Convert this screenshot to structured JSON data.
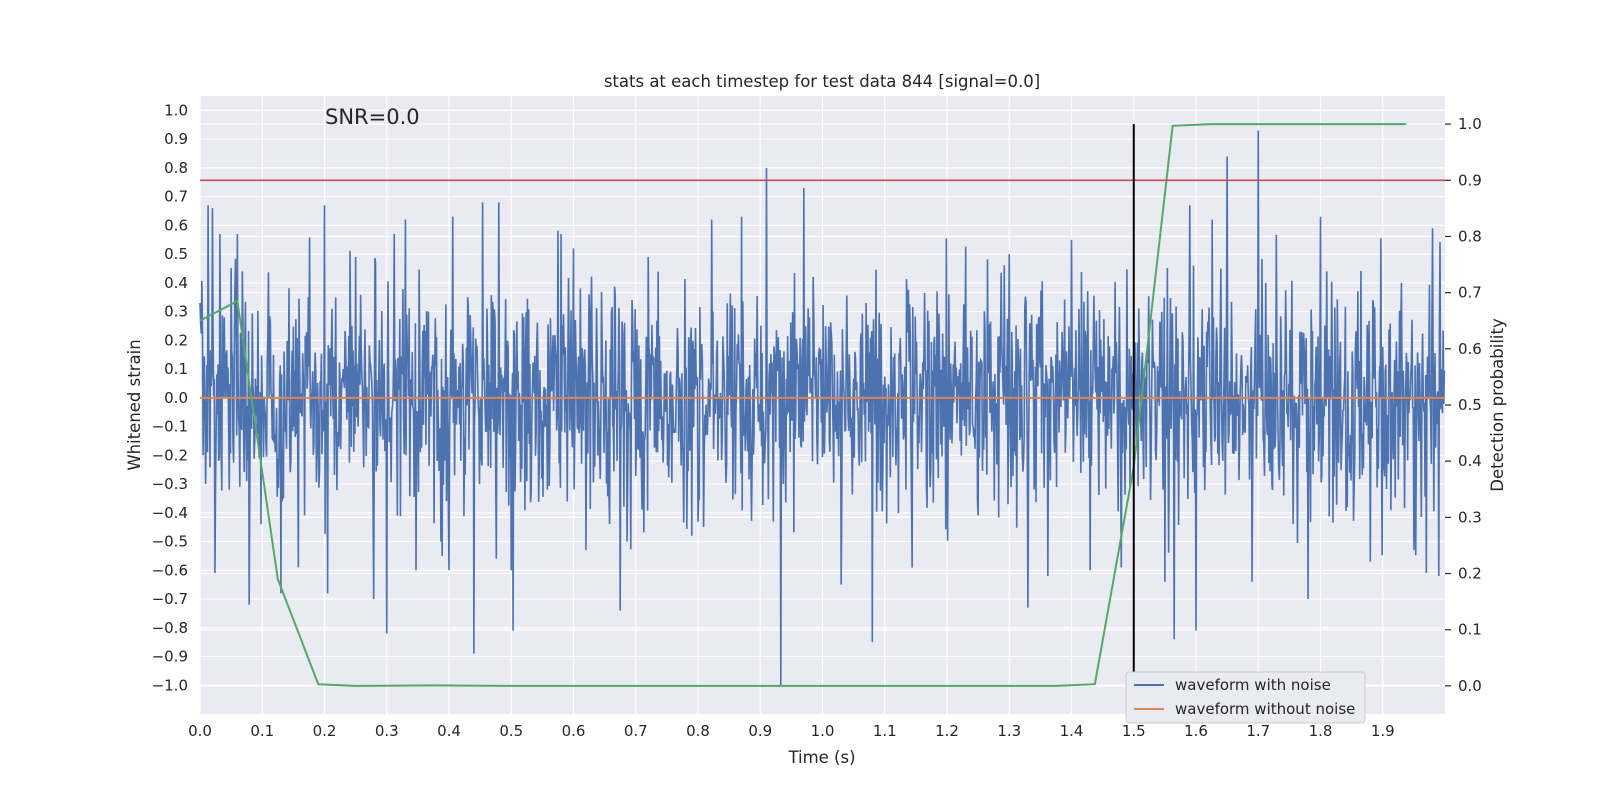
{
  "chart_data": {
    "type": "line",
    "title": "stats at each timestep for test data 844 [signal=0.0]",
    "xlabel": "Time (s)",
    "ylabel_left": "Whitened strain",
    "ylabel_right": "Detection probability",
    "xlim": [
      0.0,
      2.0
    ],
    "ylim_left": [
      -1.1,
      1.05
    ],
    "ylim_right": [
      -0.05,
      1.05
    ],
    "xticks": [
      "0.0",
      "0.1",
      "0.2",
      "0.3",
      "0.4",
      "0.5",
      "0.6",
      "0.7",
      "0.8",
      "0.9",
      "1.0",
      "1.1",
      "1.2",
      "1.3",
      "1.4",
      "1.5",
      "1.6",
      "1.7",
      "1.8",
      "1.9"
    ],
    "yticks_left": [
      "1.0",
      "0.9",
      "0.8",
      "0.7",
      "0.6",
      "0.5",
      "0.4",
      "0.3",
      "0.2",
      "0.1",
      "0.0",
      "−0.1",
      "−0.2",
      "−0.3",
      "−0.4",
      "−0.5",
      "−0.6",
      "−0.7",
      "−0.8",
      "−0.9",
      "−1.0"
    ],
    "yticks_right": [
      "1.0",
      "0.9",
      "0.8",
      "0.7",
      "0.6",
      "0.5",
      "0.4",
      "0.3",
      "0.2",
      "0.1",
      "0.0"
    ],
    "grid": true,
    "legend_position": "lower-right",
    "annotation": "SNR=0.0",
    "series": [
      {
        "name": "waveform with noise",
        "axis": "left",
        "color": "#4c72b0",
        "noise": {
          "n_samples": 2000,
          "x_start": 0.0,
          "x_end": 2.0,
          "seed": 844,
          "spikes": [
            [
              0.0,
              0.33
            ],
            [
              0.005,
              -0.2
            ],
            [
              0.013,
              0.67
            ],
            [
              0.02,
              0.66
            ],
            [
              0.025,
              -0.3
            ],
            [
              0.032,
              0.57
            ],
            [
              0.024,
              -0.61
            ],
            [
              0.06,
              0.57
            ],
            [
              0.079,
              -0.72
            ],
            [
              0.098,
              -0.44
            ],
            [
              0.13,
              -0.68
            ],
            [
              0.158,
              -0.59
            ],
            [
              0.2,
              0.67
            ],
            [
              0.205,
              -0.68
            ],
            [
              0.25,
              0.49
            ],
            [
              0.279,
              -0.7
            ],
            [
              0.3,
              -0.82
            ],
            [
              0.312,
              0.57
            ],
            [
              0.33,
              0.62
            ],
            [
              0.347,
              -0.6
            ],
            [
              0.367,
              0.3
            ],
            [
              0.389,
              -0.55
            ],
            [
              0.4,
              -0.6
            ],
            [
              0.406,
              0.63
            ],
            [
              0.43,
              0.35
            ],
            [
              0.44,
              -0.89
            ],
            [
              0.454,
              0.68
            ],
            [
              0.476,
              -0.56
            ],
            [
              0.48,
              0.68
            ],
            [
              0.5,
              -0.6
            ],
            [
              0.503,
              -0.81
            ],
            [
              0.58,
              0.57
            ],
            [
              0.6,
              -0.72
            ],
            [
              0.6,
              0.52
            ],
            [
              0.62,
              -0.53
            ],
            [
              0.675,
              -0.74
            ],
            [
              0.72,
              0.49
            ],
            [
              0.79,
              -0.48
            ],
            [
              0.87,
              0.63
            ],
            [
              0.91,
              0.8
            ],
            [
              0.933,
              -1.0
            ],
            [
              0.97,
              0.73
            ],
            [
              1.03,
              -0.65
            ],
            [
              1.07,
              0.33
            ],
            [
              1.08,
              -0.85
            ],
            [
              1.3,
              -0.86
            ],
            [
              1.3,
              0.5
            ],
            [
              1.33,
              -0.73
            ],
            [
              1.4,
              0.55
            ],
            [
              1.43,
              -0.6
            ],
            [
              1.48,
              -0.59
            ],
            [
              1.55,
              -0.64
            ],
            [
              1.565,
              -0.84
            ],
            [
              1.59,
              0.67
            ],
            [
              1.6,
              -0.81
            ],
            [
              1.65,
              -0.79
            ],
            [
              1.65,
              0.84
            ],
            [
              1.69,
              -0.64
            ],
            [
              1.7,
              0.93
            ],
            [
              1.78,
              0.78
            ],
            [
              1.78,
              -0.7
            ],
            [
              1.8,
              0.63
            ],
            [
              1.88,
              -0.57
            ],
            [
              1.93,
              0.4
            ],
            [
              1.95,
              -0.53
            ],
            [
              1.97,
              -0.61
            ],
            [
              1.98,
              0.59
            ],
            [
              1.99,
              -0.62
            ]
          ]
        }
      },
      {
        "name": "waveform without noise",
        "axis": "left",
        "color": "#dd8452",
        "x": [
          0.0,
          2.0
        ],
        "y": [
          0.0,
          0.0
        ]
      },
      {
        "name": "",
        "axis": "right",
        "color": "#55a868",
        "x": [
          0.0,
          0.06,
          0.125,
          0.19,
          0.25,
          0.375,
          0.5,
          0.625,
          0.75,
          0.875,
          1.0,
          1.125,
          1.25,
          1.375,
          1.4375,
          1.5,
          1.5625,
          1.625,
          1.6875,
          1.75,
          1.875,
          1.9375
        ],
        "y": [
          0.65,
          0.685,
          0.19,
          0.003,
          0.0,
          0.001,
          0.0,
          0.0,
          0.0,
          0.0,
          0.0,
          0.0,
          0.0,
          0.0,
          0.003,
          0.39,
          0.997,
          1.0,
          1.0,
          1.0,
          1.0,
          1.0
        ]
      }
    ],
    "reference_lines": [
      {
        "orientation": "horizontal",
        "axis": "right",
        "value": 0.9,
        "color": "#c44e52"
      },
      {
        "orientation": "vertical",
        "value": 1.5,
        "y_range_right": [
          0.0,
          1.0
        ],
        "color": "#000000"
      }
    ]
  }
}
